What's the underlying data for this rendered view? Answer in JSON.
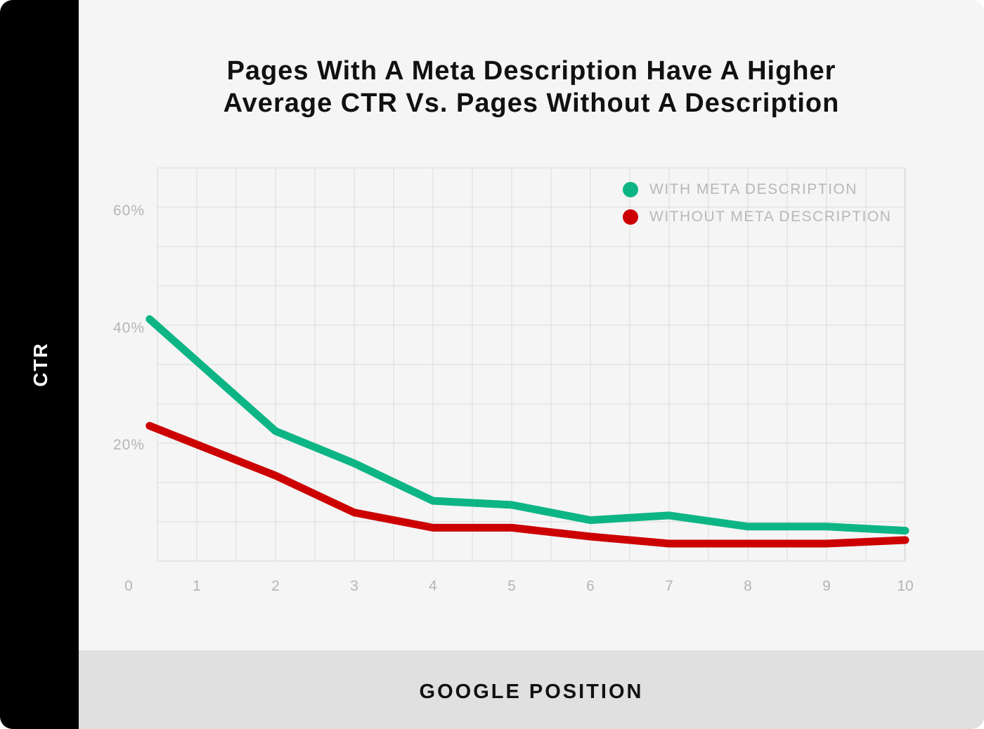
{
  "chart_data": {
    "type": "line",
    "title": "Pages With A Meta Description Have A Higher Average CTR Vs. Pages Without A Description",
    "title_lines": [
      "Pages With A Meta Description Have A Higher",
      "Average CTR Vs. Pages Without A Description"
    ],
    "xlabel": "GOOGLE POSITION",
    "ylabel": "CTR",
    "x_ticks": [
      "0",
      "1",
      "2",
      "3",
      "4",
      "5",
      "6",
      "7",
      "8",
      "9",
      "10"
    ],
    "y_ticks": [
      {
        "value": 20,
        "label": "20%"
      },
      {
        "value": 40,
        "label": "40%"
      },
      {
        "value": 60,
        "label": "60%"
      }
    ],
    "xlim": [
      0,
      10
    ],
    "ylim": [
      0,
      67
    ],
    "grid": true,
    "legend_position": "top-right",
    "x": [
      0.4,
      2,
      3,
      4,
      5,
      6,
      7,
      8,
      9,
      10
    ],
    "series": [
      {
        "name": "WITH META DESCRIPTION",
        "color": "#0db585",
        "values": [
          41.3,
          22.2,
          16.7,
          10.3,
          9.6,
          7.0,
          7.8,
          5.9,
          5.9,
          5.2
        ]
      },
      {
        "name": "WITHOUT META DESCRIPTION",
        "color": "#cc0000",
        "values": [
          23.1,
          14.6,
          8.3,
          5.7,
          5.7,
          4.2,
          3.0,
          3.0,
          3.0,
          3.6
        ]
      }
    ]
  }
}
